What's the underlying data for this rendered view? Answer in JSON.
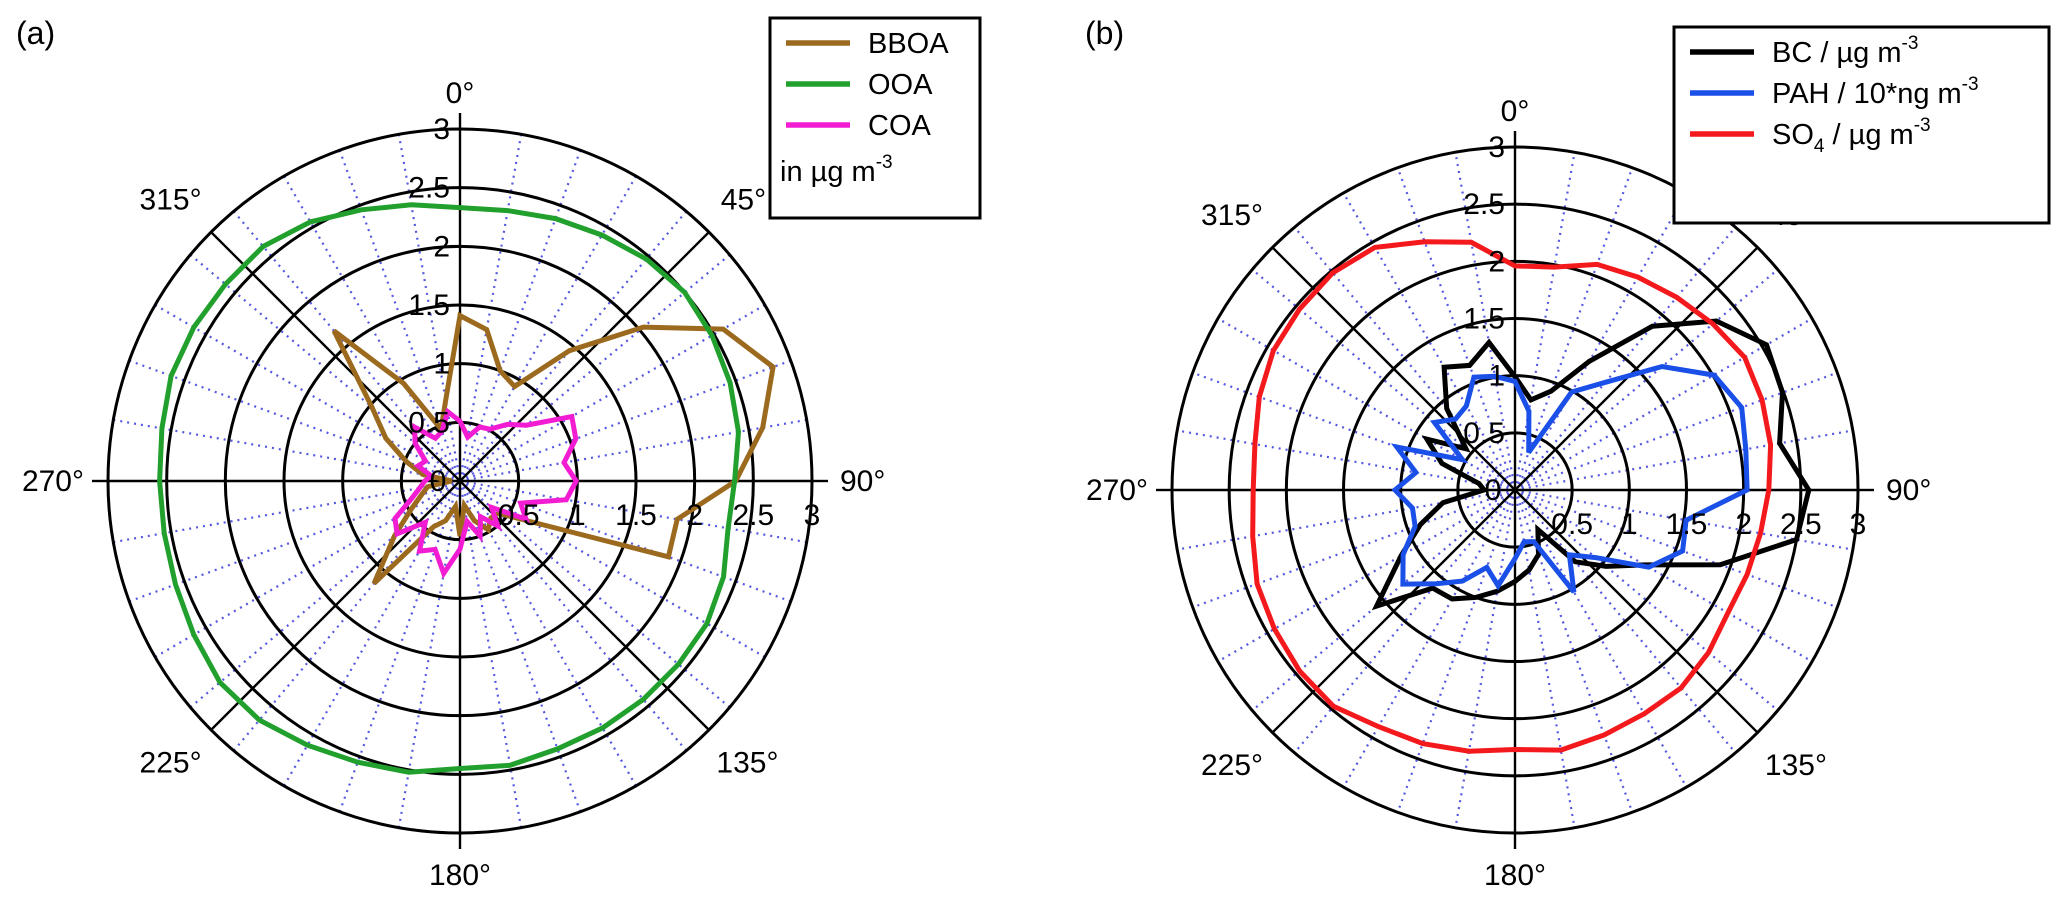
{
  "chart_data": [
    {
      "type": "polar-line",
      "panel_label": "(a)",
      "rlim": [
        0,
        3
      ],
      "r_ticks": [
        "0",
        "0.5",
        "1",
        "1.5",
        "2",
        "2.5",
        "3"
      ],
      "direction_labels": [
        "0°",
        "45°",
        "90°",
        "135°",
        "180°",
        "225°",
        "270°",
        "315°"
      ],
      "legend": {
        "position": "top-right",
        "note": "in µg m",
        "note_sup": "-3"
      },
      "angles_deg": [
        0,
        10,
        20,
        30,
        40,
        50,
        60,
        70,
        80,
        90,
        100,
        110,
        120,
        130,
        140,
        150,
        160,
        170,
        180,
        190,
        200,
        210,
        220,
        230,
        240,
        250,
        260,
        270,
        280,
        290,
        300,
        310,
        320,
        330,
        340,
        350
      ],
      "series": [
        {
          "name": "BBOA",
          "color": "#9c6a1f",
          "values": [
            1.41,
            1.31,
            1.0,
            0.93,
            1.45,
            2.04,
            2.59,
            2.84,
            2.62,
            2.35,
            1.88,
            1.89,
            0.69,
            0.43,
            0.41,
            0.48,
            0.36,
            0.21,
            0.47,
            0.22,
            0.36,
            0.45,
            1.14,
            0.73,
            0.48,
            0.35,
            0.28,
            0.07,
            0.32,
            0.49,
            0.73,
            0.98,
            1.67,
            0.96,
            0.47,
            0.7
          ]
        },
        {
          "name": "OOA",
          "color": "#21a02d",
          "values": [
            2.33,
            2.34,
            2.38,
            2.42,
            2.47,
            2.5,
            2.48,
            2.45,
            2.41,
            2.34,
            2.32,
            2.39,
            2.43,
            2.43,
            2.43,
            2.43,
            2.43,
            2.46,
            2.45,
            2.52,
            2.55,
            2.6,
            2.66,
            2.67,
            2.62,
            2.58,
            2.56,
            2.56,
            2.58,
            2.62,
            2.62,
            2.61,
            2.61,
            2.55,
            2.46,
            2.39
          ]
        },
        {
          "name": "COA",
          "color": "#f21cd2",
          "values": [
            0.51,
            0.38,
            0.49,
            0.51,
            0.63,
            0.74,
            1.1,
            1.05,
            0.9,
            0.99,
            0.92,
            0.55,
            0.65,
            0.35,
            0.5,
            0.35,
            0.5,
            0.35,
            0.58,
            0.8,
            0.62,
            0.69,
            0.46,
            0.7,
            0.64,
            0.44,
            0.35,
            0.3,
            0.25,
            0.38,
            0.34,
            0.5,
            0.6,
            0.42,
            0.45,
            0.6
          ]
        }
      ]
    },
    {
      "type": "polar-line",
      "panel_label": "(b)",
      "rlim": [
        0,
        3
      ],
      "r_ticks": [
        "0",
        "0.5",
        "1",
        "1.5",
        "2",
        "2.5",
        "3"
      ],
      "direction_labels": [
        "0°",
        "45°",
        "90°",
        "135°",
        "180°",
        "225°",
        "270°",
        "315°"
      ],
      "legend": {
        "position": "top-right"
      },
      "angles_deg": [
        0,
        10,
        20,
        30,
        40,
        50,
        60,
        70,
        80,
        90,
        100,
        110,
        120,
        130,
        140,
        150,
        160,
        170,
        180,
        190,
        200,
        210,
        220,
        230,
        240,
        250,
        260,
        270,
        280,
        290,
        300,
        310,
        320,
        330,
        340,
        350
      ],
      "series": [
        {
          "name": "BC / µg m",
          "name_sup": "-3",
          "color": "#000000",
          "values": [
            0.99,
            0.8,
            0.92,
            1.3,
            1.87,
            2.3,
            2.54,
            2.49,
            2.35,
            2.57,
            2.5,
            1.91,
            1.31,
            1.04,
            0.82,
            0.4,
            0.6,
            0.71,
            0.8,
            0.9,
            1.0,
            1.1,
            1.12,
            1.58,
            1.15,
            0.88,
            0.64,
            0.27,
            0.32,
            0.68,
            0.89,
            0.56,
            0.93,
            1.24,
            1.16,
            1.31
          ]
        },
        {
          "name": "PAH / 10*ng m",
          "name_sup": "-3",
          "color": "#1a4fe8",
          "values": [
            0.95,
            0.7,
            0.35,
            0.99,
            1.23,
            1.68,
            2.01,
            2.11,
            2.05,
            2.03,
            1.52,
            1.56,
            1.35,
            0.92,
            0.74,
            1.03,
            0.48,
            0.46,
            0.6,
            0.85,
            0.72,
            0.92,
            1.07,
            1.28,
            1.13,
            0.93,
            0.91,
            1.05,
            0.88,
            1.1,
            0.53,
            0.92,
            0.81,
            0.85,
            1.05,
            1.01
          ]
        },
        {
          "name": "SO",
          "name_sub": "4",
          "name_suffix": " / µg m",
          "name_sup": "-3",
          "color": "#f4191c",
          "values": [
            1.96,
            1.98,
            2.1,
            2.15,
            2.2,
            2.26,
            2.32,
            2.3,
            2.27,
            2.22,
            2.18,
            2.16,
            2.15,
            2.21,
            2.26,
            2.26,
            2.28,
            2.31,
            2.27,
            2.32,
            2.36,
            2.39,
            2.47,
            2.46,
            2.43,
            2.4,
            2.33,
            2.29,
            2.31,
            2.38,
            2.44,
            2.46,
            2.48,
            2.45,
            2.31,
            2.2
          ]
        }
      ]
    }
  ]
}
